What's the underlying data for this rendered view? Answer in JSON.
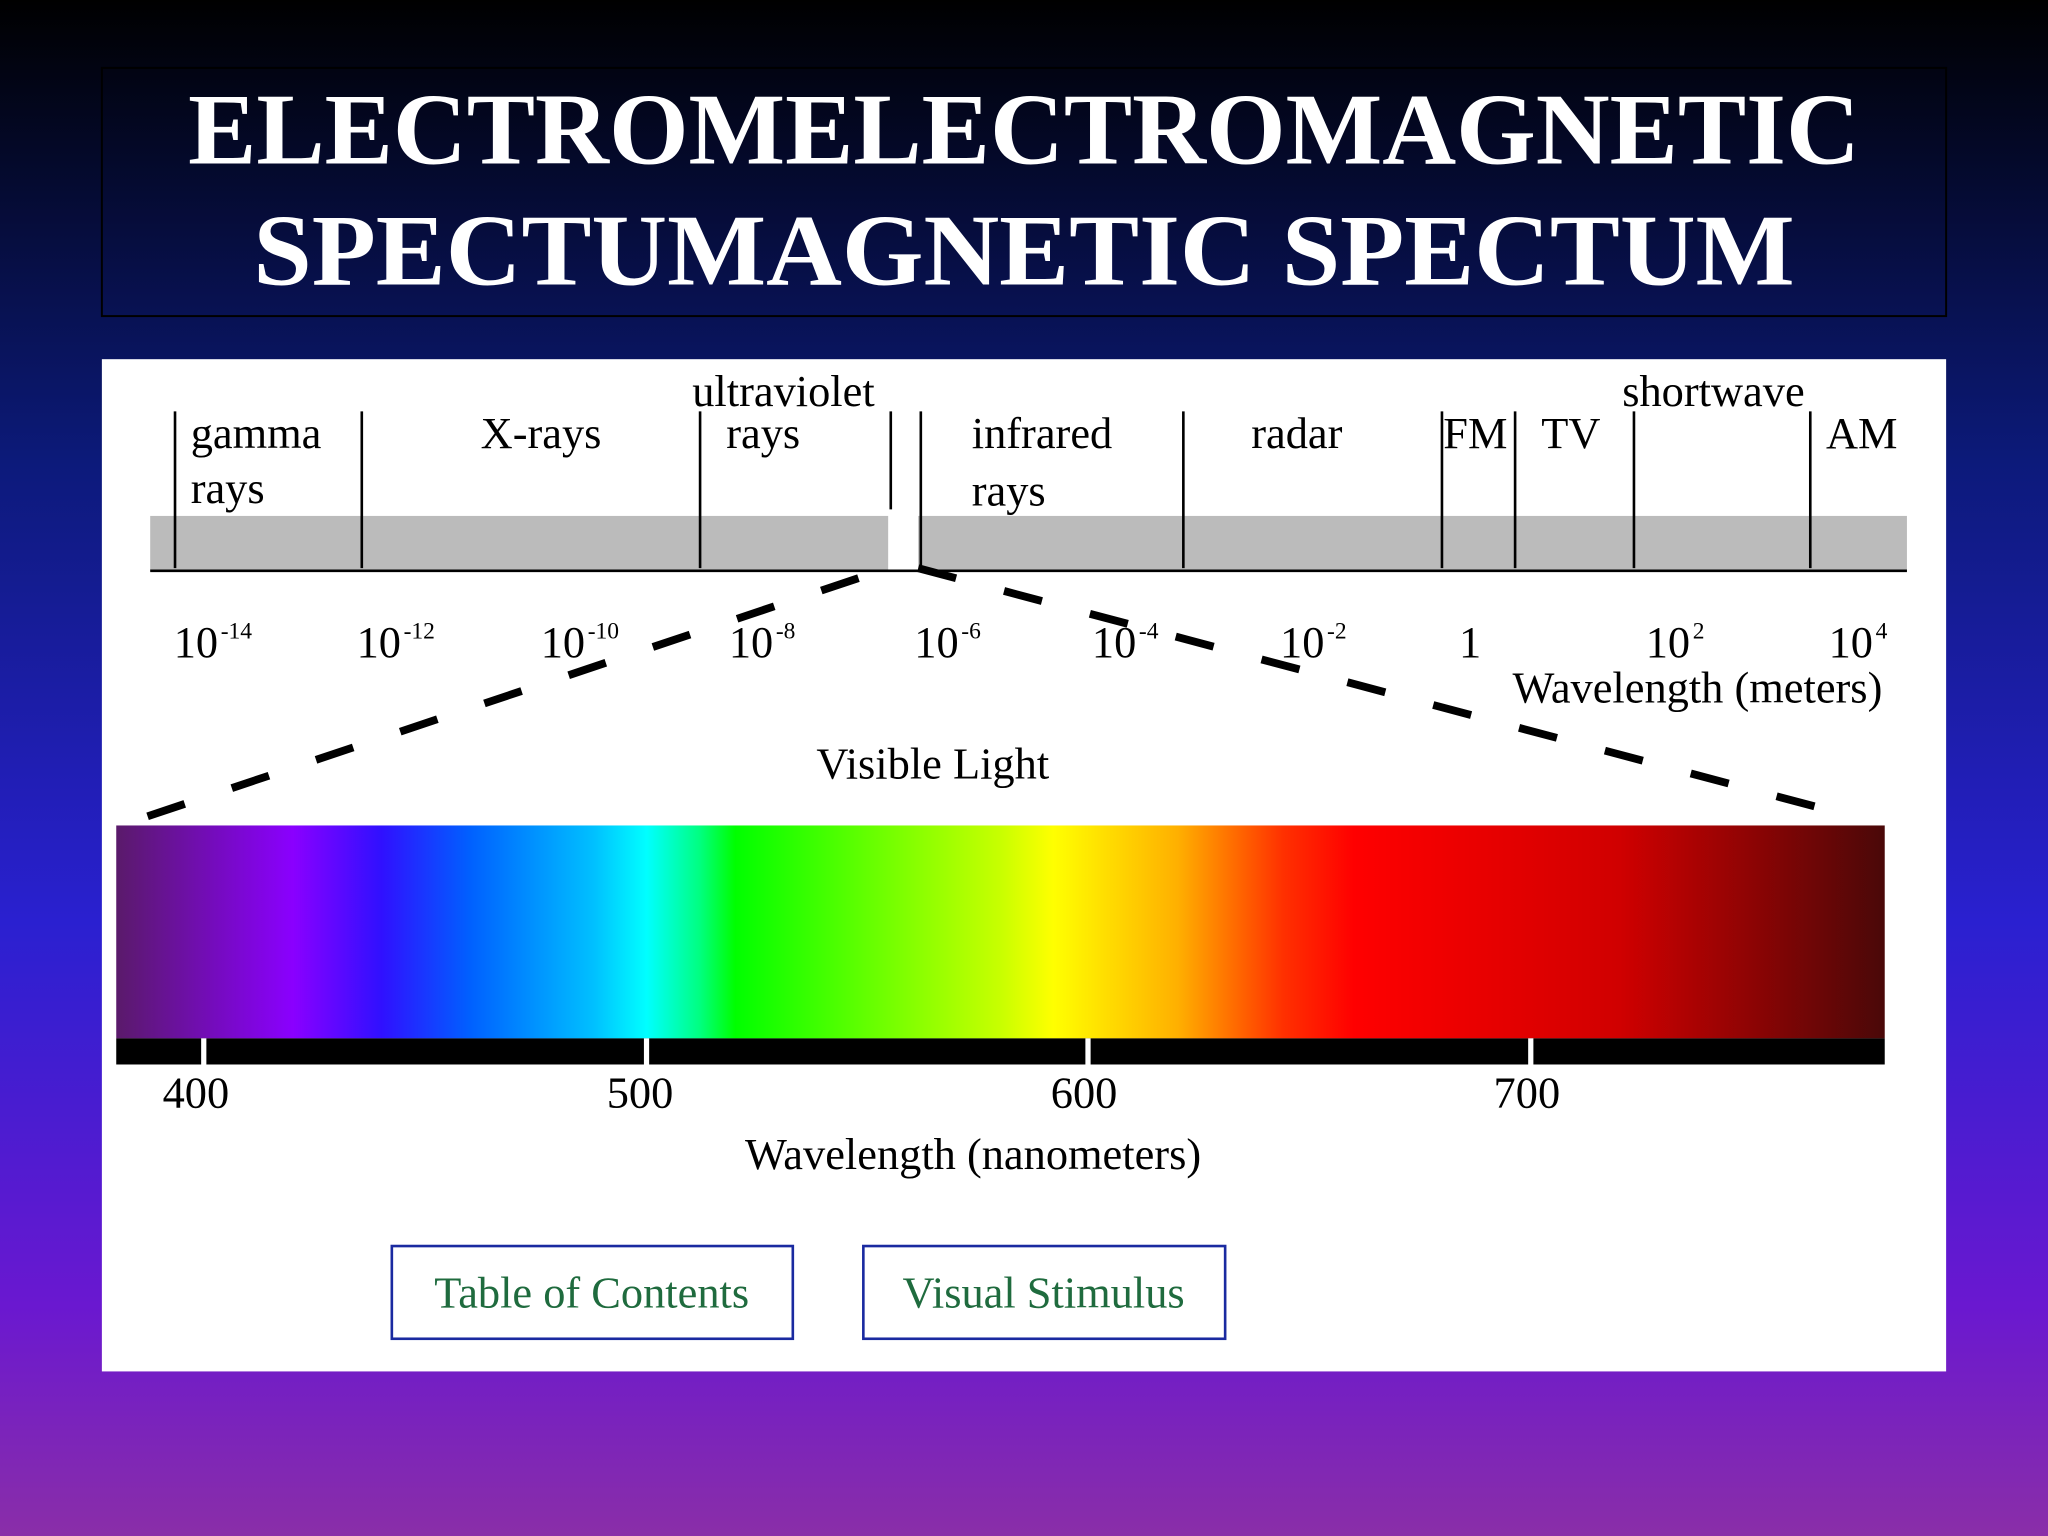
{
  "title": {
    "lines": [
      "ELECTROMELECTROMAGNETIC",
      "SPECTUMAGNETIC SPECTUM"
    ]
  },
  "spectrum": {
    "bands": [
      {
        "lines": [
          "gamma",
          "rays"
        ]
      },
      {
        "lines": [
          "X-rays"
        ]
      },
      {
        "lines": [
          "ultraviolet",
          "rays"
        ]
      },
      {
        "lines": [
          "infrared",
          "rays"
        ]
      },
      {
        "lines": [
          "radar"
        ]
      },
      {
        "lines": [
          "FM"
        ]
      },
      {
        "lines": [
          "TV"
        ]
      },
      {
        "lines": [
          "shortwave"
        ]
      },
      {
        "lines": [
          "AM"
        ]
      }
    ],
    "wavelengths": [
      {
        "base": "10",
        "exponent": "-14"
      },
      {
        "base": "10",
        "exponent": "-12"
      },
      {
        "base": "10",
        "exponent": "-10"
      },
      {
        "base": "10",
        "exponent": "-8"
      },
      {
        "base": "10",
        "exponent": "-6"
      },
      {
        "base": "10",
        "exponent": "-4"
      },
      {
        "base": "10",
        "exponent": "-2"
      },
      {
        "base": "1"
      },
      {
        "base": "10",
        "exponent": "2"
      },
      {
        "base": "10",
        "exponent": "4"
      }
    ],
    "wavelength_label": "Wavelength (meters)"
  },
  "visible": {
    "label": "Visible Light",
    "ticks": [
      400,
      500,
      600,
      700
    ],
    "axis_label": "Wavelength (nanometers)"
  },
  "buttons": [
    "Table of Contents",
    "Visual Stimulus"
  ]
}
